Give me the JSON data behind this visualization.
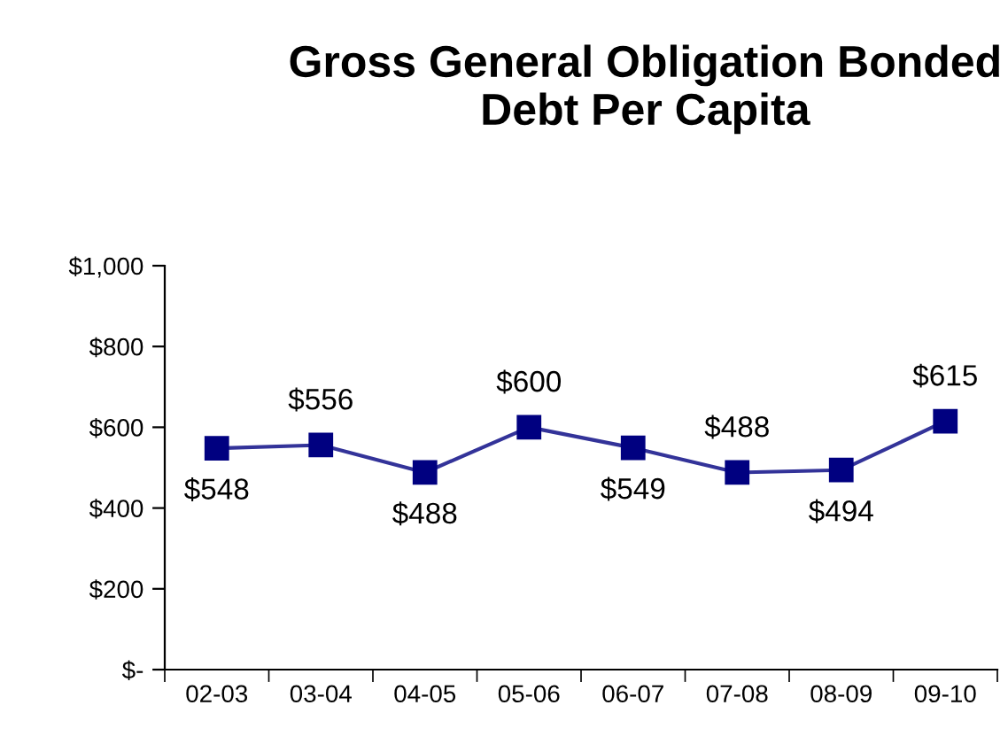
{
  "chart_data": {
    "type": "line",
    "title": "Gross General Obligation Bonded\nDebt Per Capita",
    "categories": [
      "02-03",
      "03-04",
      "04-05",
      "05-06",
      "06-07",
      "07-08",
      "08-09",
      "09-10"
    ],
    "series": [
      {
        "color": "#333399",
        "values": [
          548,
          556,
          488,
          600,
          549,
          488,
          494,
          615
        ]
      }
    ],
    "value_labels": [
      "$548",
      "$556",
      "$488",
      "$600",
      "$549",
      "$488",
      "$494",
      "$615"
    ],
    "ylim": [
      0,
      1000
    ],
    "yticks": [
      {
        "value": 0,
        "label": "$-"
      },
      {
        "value": 200,
        "label": "$200"
      },
      {
        "value": 400,
        "label": "$400"
      },
      {
        "value": 600,
        "label": "$600"
      },
      {
        "value": 800,
        "label": "$800"
      },
      {
        "value": 1000,
        "label": "$1,000"
      }
    ],
    "marker": "square",
    "line_style": "solid",
    "grid": false,
    "legend": false
  }
}
